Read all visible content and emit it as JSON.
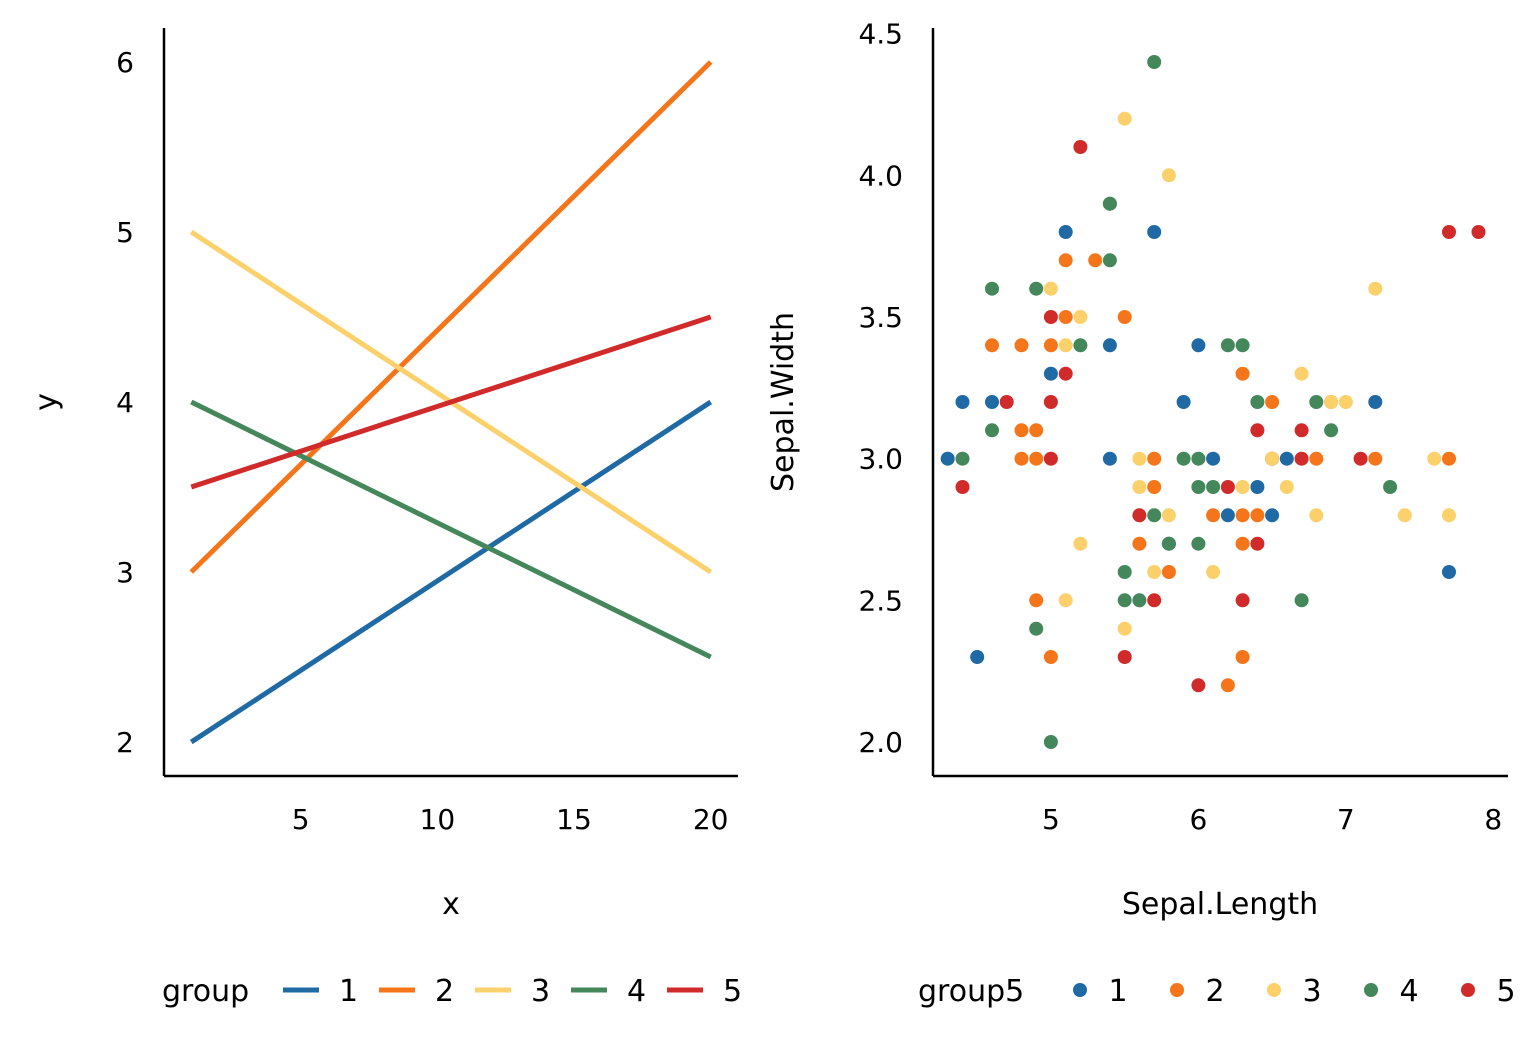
{
  "colors": {
    "1": "#1F6AA5",
    "2": "#F5761A",
    "3": "#FCD06B",
    "4": "#43875A",
    "5": "#D12A2A",
    "axis": "#000000",
    "background": "#FFFFFF"
  },
  "chart_data": [
    {
      "type": "line",
      "xlabel": "x",
      "ylabel": "y",
      "xlim": [
        0,
        21
      ],
      "ylim": [
        1.8,
        6.2
      ],
      "xticks": [
        5,
        10,
        15,
        20
      ],
      "yticks": [
        2,
        3,
        4,
        5,
        6
      ],
      "grid": false,
      "legend": {
        "title": "group",
        "position": "bottom",
        "entries": [
          "1",
          "2",
          "3",
          "4",
          "5"
        ]
      },
      "series": [
        {
          "name": "1",
          "x": [
            1,
            20
          ],
          "y": [
            2,
            4
          ]
        },
        {
          "name": "2",
          "x": [
            1,
            20
          ],
          "y": [
            3,
            6
          ]
        },
        {
          "name": "3",
          "x": [
            1,
            20
          ],
          "y": [
            5,
            3
          ]
        },
        {
          "name": "4",
          "x": [
            1,
            20
          ],
          "y": [
            4,
            2.5
          ]
        },
        {
          "name": "5",
          "x": [
            1,
            20
          ],
          "y": [
            3.5,
            4.5
          ]
        }
      ]
    },
    {
      "type": "scatter",
      "xlabel": "Sepal.Length",
      "ylabel": "Sepal.Width",
      "xlim": [
        4.2,
        8.1
      ],
      "ylim": [
        1.88,
        4.52
      ],
      "xticks": [
        5,
        6,
        7,
        8
      ],
      "yticks": [
        "2.0",
        "2.5",
        "3.0",
        "3.5",
        "4.0",
        "4.5"
      ],
      "grid": false,
      "legend": {
        "title": "group5",
        "position": "bottom",
        "entries": [
          "1",
          "2",
          "3",
          "4",
          "5"
        ]
      },
      "series": [
        {
          "name": "1",
          "points": [
            [
              4.3,
              3.0
            ],
            [
              4.4,
              3.2
            ],
            [
              4.5,
              2.3
            ],
            [
              4.6,
              3.2
            ],
            [
              5.0,
              3.3
            ],
            [
              5.1,
              3.8
            ],
            [
              5.4,
              3.4
            ],
            [
              5.4,
              3.0
            ],
            [
              5.4,
              3.9
            ],
            [
              5.7,
              3.8
            ],
            [
              5.8,
              2.7
            ],
            [
              5.9,
              3.2
            ],
            [
              6.0,
              3.4
            ],
            [
              6.1,
              3.0
            ],
            [
              6.2,
              2.8
            ],
            [
              6.4,
              2.9
            ],
            [
              6.5,
              2.8
            ],
            [
              6.5,
              3.0
            ],
            [
              6.6,
              3.0
            ],
            [
              7.2,
              3.2
            ],
            [
              7.7,
              2.6
            ]
          ]
        },
        {
          "name": "2",
          "points": [
            [
              4.6,
              3.4
            ],
            [
              4.8,
              3.1
            ],
            [
              4.8,
              3.0
            ],
            [
              4.8,
              3.4
            ],
            [
              4.9,
              3.1
            ],
            [
              4.9,
              3.0
            ],
            [
              4.9,
              2.5
            ],
            [
              5.0,
              3.4
            ],
            [
              5.0,
              2.3
            ],
            [
              5.1,
              3.7
            ],
            [
              5.1,
              3.5
            ],
            [
              5.3,
              3.7
            ],
            [
              5.5,
              3.5
            ],
            [
              5.6,
              2.7
            ],
            [
              5.7,
              3.0
            ],
            [
              5.7,
              2.9
            ],
            [
              5.8,
              2.6
            ],
            [
              6.1,
              2.8
            ],
            [
              6.2,
              2.2
            ],
            [
              6.3,
              3.3
            ],
            [
              6.3,
              2.8
            ],
            [
              6.3,
              2.7
            ],
            [
              6.3,
              2.3
            ],
            [
              6.4,
              2.8
            ],
            [
              6.5,
              3.2
            ],
            [
              6.5,
              3.0
            ],
            [
              6.8,
              3.0
            ],
            [
              6.9,
              3.2
            ],
            [
              7.2,
              3.0
            ],
            [
              7.7,
              3.0
            ]
          ]
        },
        {
          "name": "3",
          "points": [
            [
              5.0,
              3.6
            ],
            [
              5.1,
              3.4
            ],
            [
              5.2,
              3.5
            ],
            [
              5.2,
              2.7
            ],
            [
              5.1,
              2.5
            ],
            [
              5.4,
              3.9
            ],
            [
              5.5,
              4.2
            ],
            [
              5.5,
              2.4
            ],
            [
              5.6,
              3.0
            ],
            [
              5.6,
              2.9
            ],
            [
              5.7,
              2.6
            ],
            [
              5.8,
              4.0
            ],
            [
              5.8,
              2.8
            ],
            [
              6.1,
              2.6
            ],
            [
              6.3,
              2.9
            ],
            [
              6.5,
              3.0
            ],
            [
              6.6,
              2.9
            ],
            [
              6.7,
              3.3
            ],
            [
              6.8,
              2.8
            ],
            [
              6.9,
              3.2
            ],
            [
              7.0,
              3.2
            ],
            [
              7.2,
              3.6
            ],
            [
              7.4,
              2.8
            ],
            [
              7.6,
              3.0
            ],
            [
              7.7,
              2.8
            ]
          ]
        },
        {
          "name": "4",
          "points": [
            [
              4.4,
              3.0
            ],
            [
              4.6,
              3.6
            ],
            [
              4.6,
              3.1
            ],
            [
              4.9,
              3.6
            ],
            [
              4.9,
              2.4
            ],
            [
              5.0,
              2.0
            ],
            [
              5.2,
              3.4
            ],
            [
              5.4,
              3.7
            ],
            [
              5.4,
              3.9
            ],
            [
              5.5,
              2.6
            ],
            [
              5.5,
              2.5
            ],
            [
              5.6,
              2.5
            ],
            [
              5.7,
              2.8
            ],
            [
              5.7,
              4.4
            ],
            [
              5.8,
              2.7
            ],
            [
              5.9,
              3.0
            ],
            [
              6.0,
              3.0
            ],
            [
              6.0,
              2.9
            ],
            [
              6.0,
              2.7
            ],
            [
              6.1,
              2.9
            ],
            [
              6.2,
              3.4
            ],
            [
              6.3,
              3.4
            ],
            [
              6.4,
              3.2
            ],
            [
              6.7,
              2.5
            ],
            [
              6.8,
              3.2
            ],
            [
              6.9,
              3.1
            ],
            [
              7.3,
              2.9
            ]
          ]
        },
        {
          "name": "5",
          "points": [
            [
              4.4,
              2.9
            ],
            [
              4.7,
              3.2
            ],
            [
              5.0,
              3.5
            ],
            [
              5.0,
              3.2
            ],
            [
              5.0,
              3.0
            ],
            [
              5.1,
              3.3
            ],
            [
              5.2,
              4.1
            ],
            [
              5.5,
              2.3
            ],
            [
              5.6,
              2.8
            ],
            [
              5.7,
              2.5
            ],
            [
              6.0,
              2.2
            ],
            [
              6.2,
              2.9
            ],
            [
              6.3,
              2.5
            ],
            [
              6.4,
              3.1
            ],
            [
              6.4,
              2.7
            ],
            [
              6.7,
              3.1
            ],
            [
              6.7,
              3.0
            ],
            [
              7.1,
              3.0
            ],
            [
              7.7,
              3.8
            ],
            [
              7.9,
              3.8
            ]
          ]
        }
      ]
    }
  ]
}
